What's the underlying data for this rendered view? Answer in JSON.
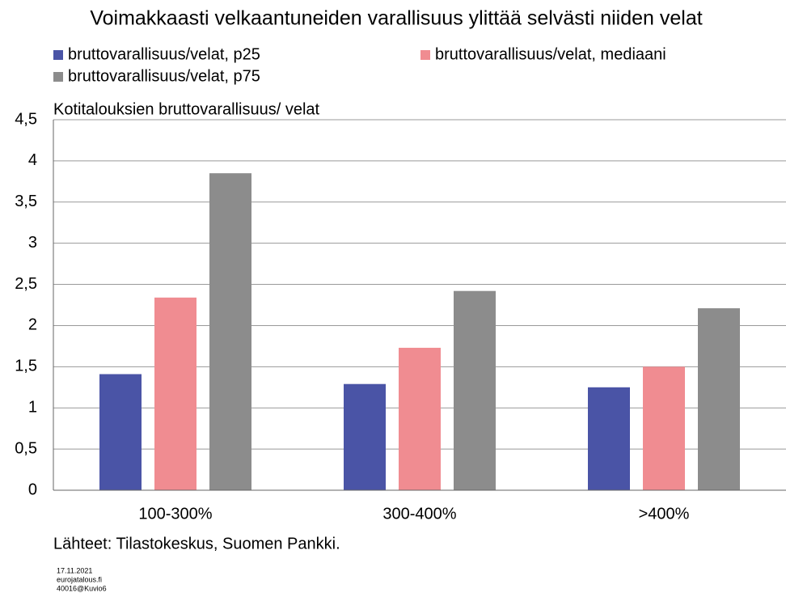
{
  "chart_data": {
    "type": "bar",
    "title": "Voimakkaasti velkaantuneiden varallisuus ylittää selvästi niiden velat",
    "y_label": "Kotitalouksien bruttovarallisuus/ velat",
    "source": "Lähteet: Tilastokeskus, Suomen Pankki.",
    "footnote": [
      "17.11.2021",
      "eurojatalous.fi",
      "40016@Kuvio6"
    ],
    "categories": [
      "100-300%",
      "300-400%",
      ">400%"
    ],
    "series": [
      {
        "name": "bruttovarallisuus/velat, p25",
        "color": "#4a54a6",
        "values": [
          1.41,
          1.29,
          1.25
        ]
      },
      {
        "name": "bruttovarallisuus/velat, mediaani",
        "color": "#f08c91",
        "values": [
          2.34,
          1.73,
          1.5
        ]
      },
      {
        "name": "bruttovarallisuus/velat, p75",
        "color": "#8c8c8c",
        "values": [
          3.85,
          2.42,
          2.21
        ]
      }
    ],
    "ylim": [
      0,
      4.5
    ],
    "yticks": [
      0,
      {
        "value": 0.5,
        "label": "0,5"
      },
      1,
      {
        "value": 1.5,
        "label": "1,5"
      },
      2,
      {
        "value": 2.5,
        "label": "2,5"
      },
      3,
      {
        "value": 3.5,
        "label": "3,5"
      },
      4,
      {
        "value": 4.5,
        "label": "4,5"
      }
    ],
    "grid": true
  }
}
